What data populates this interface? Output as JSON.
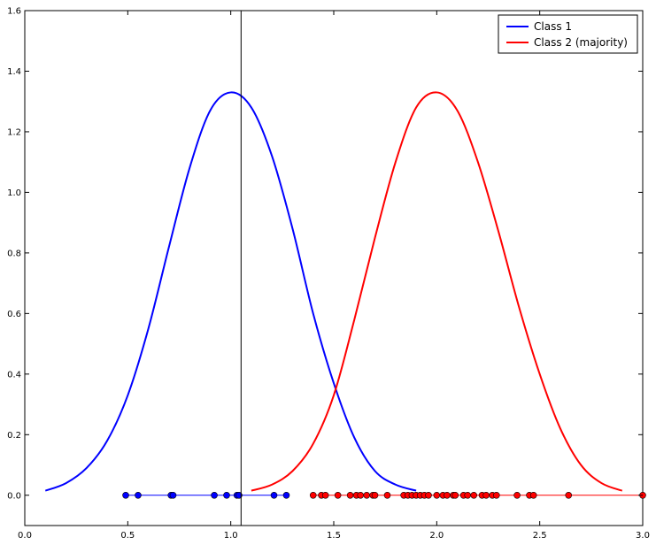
{
  "chart_data": {
    "type": "line",
    "title": "",
    "xlabel": "",
    "ylabel": "",
    "xlim": [
      0.0,
      3.0
    ],
    "ylim": [
      -0.1,
      1.6
    ],
    "x_ticks": [
      "0.0",
      "0.5",
      "1.0",
      "1.5",
      "2.0",
      "2.5",
      "3.0"
    ],
    "y_ticks": [
      "0.0",
      "0.2",
      "0.4",
      "0.6",
      "0.8",
      "1.0",
      "1.2",
      "1.4",
      "1.6"
    ],
    "legend": {
      "position": "top-right",
      "entries": [
        {
          "name": "Class 1",
          "color": "#0000ff"
        },
        {
          "name": "Class 2 (majority)",
          "color": "#ff0000"
        }
      ]
    },
    "series": [
      {
        "name": "Class 1",
        "kind": "density-curve",
        "color": "#0000ff",
        "x": [
          0.1,
          0.2,
          0.3,
          0.4,
          0.5,
          0.6,
          0.7,
          0.8,
          0.9,
          1.0,
          1.1,
          1.2,
          1.3,
          1.4,
          1.5,
          1.6,
          1.7,
          1.8,
          1.9
        ],
        "y": [
          0.015,
          0.04,
          0.09,
          0.18,
          0.33,
          0.55,
          0.82,
          1.08,
          1.27,
          1.33,
          1.28,
          1.12,
          0.88,
          0.6,
          0.37,
          0.19,
          0.08,
          0.035,
          0.015
        ]
      },
      {
        "name": "Class 2 (majority)",
        "kind": "density-curve",
        "color": "#ff0000",
        "x": [
          1.1,
          1.2,
          1.3,
          1.4,
          1.5,
          1.6,
          1.7,
          1.8,
          1.9,
          2.0,
          2.1,
          2.2,
          2.3,
          2.4,
          2.5,
          2.6,
          2.7,
          2.8,
          2.9
        ],
        "y": [
          0.015,
          0.035,
          0.08,
          0.17,
          0.33,
          0.58,
          0.85,
          1.1,
          1.28,
          1.33,
          1.27,
          1.1,
          0.87,
          0.62,
          0.4,
          0.22,
          0.1,
          0.04,
          0.015
        ]
      },
      {
        "name": "Class 1 samples",
        "kind": "points",
        "color": "#0000ff",
        "x": [
          0.49,
          0.55,
          0.71,
          0.72,
          0.92,
          0.98,
          1.03,
          1.04,
          1.21,
          1.27
        ],
        "y": [
          0,
          0,
          0,
          0,
          0,
          0,
          0,
          0,
          0,
          0
        ]
      },
      {
        "name": "Class 2 samples",
        "kind": "points",
        "color": "#ff0000",
        "x": [
          1.4,
          1.44,
          1.46,
          1.52,
          1.58,
          1.61,
          1.63,
          1.66,
          1.69,
          1.7,
          1.76,
          1.84,
          1.86,
          1.88,
          1.9,
          1.92,
          1.94,
          1.96,
          2.0,
          2.03,
          2.05,
          2.08,
          2.09,
          2.13,
          2.15,
          2.18,
          2.22,
          2.24,
          2.27,
          2.29,
          2.39,
          2.45,
          2.47,
          2.64,
          3.0
        ],
        "y": [
          0,
          0,
          0,
          0,
          0,
          0,
          0,
          0,
          0,
          0,
          0,
          0,
          0,
          0,
          0,
          0,
          0,
          0,
          0,
          0,
          0,
          0,
          0,
          0,
          0,
          0,
          0,
          0,
          0,
          0,
          0,
          0,
          0,
          0,
          0
        ]
      }
    ],
    "vertical_line": {
      "x": 1.05,
      "color": "#000000"
    },
    "grid": false
  }
}
